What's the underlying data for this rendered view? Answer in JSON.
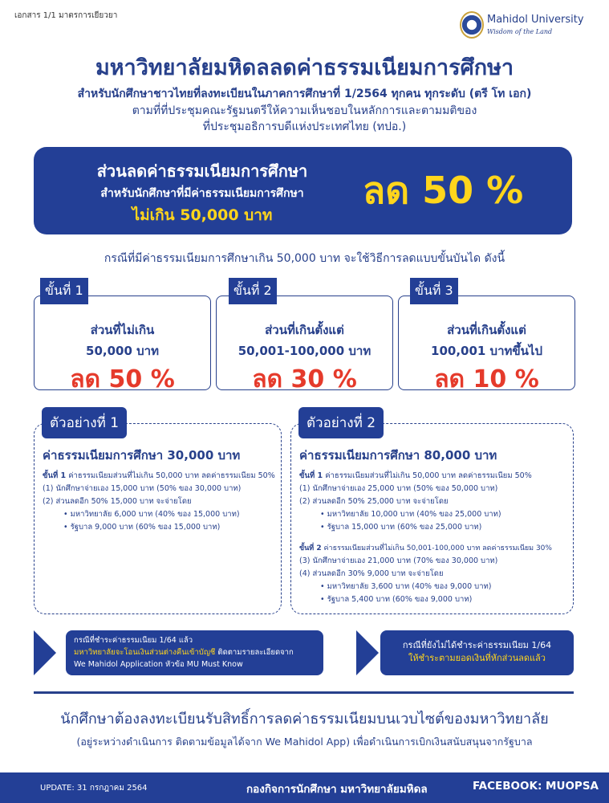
{
  "header": {
    "doc_note": "เอกสาร 1/1 มาตรการเยียวยา",
    "university_name": "Mahidol University",
    "slogan": "Wisdom of the Land",
    "title": "มหาวิทยาลัยมหิดลลดค่าธรรมเนียมการศึกษา",
    "subtitle_lines": [
      "สำหรับนักศึกษาชาวไทยที่ลงทะเบียนในภาคการศึกษาที่ 1/2564 ทุกคน ทุกระดับ (ตรี โท เอก)",
      "ตามที่ที่ประชุมคณะรัฐมนตรีให้ความเห็นชอบในหลักการและตามมติของ",
      "ที่ประชุมอธิการบดีแห่งประเทศไทย (ทปอ.)"
    ]
  },
  "hero": {
    "line1": "ส่วนลดค่าธรรมเนียมการศึกษา",
    "line2": "สำหรับนักศึกษาที่มีค่าธรรมเนียมการศึกษา",
    "line3": "ไม่เกิน 50,000 บาท",
    "discount": "ลด 50 %"
  },
  "step_note": "กรณีที่มีค่าธรรมเนียมการศึกษาเกิน 50,000 บาท จะใช้วิธีการลดแบบขั้นบันได ดังนี้",
  "tiers": [
    {
      "tag": "ขั้นที่ 1",
      "line1": "ส่วนที่ไม่เกิน",
      "line2": "50,000 บาท",
      "discount": "ลด 50 %"
    },
    {
      "tag": "ขั้นที่ 2",
      "line1": "ส่วนที่เกินตั้งแต่",
      "line2": "50,001-100,000 บาท",
      "discount": "ลด 30 %"
    },
    {
      "tag": "ขั้นที่ 3",
      "line1": "ส่วนที่เกินตั้งแต่",
      "line2": "100,001 บาทขึ้นไป",
      "discount": "ลด 10 %"
    }
  ],
  "examples": [
    {
      "tag": "ตัวอย่างที่ 1",
      "heading": "ค่าธรรมเนียมการศึกษา 30,000 บาท",
      "s1_label": "ขั้นที่ 1",
      "s1_text": "ค่าธรรมเนียมส่วนที่ไม่เกิน 50,000 บาท ลดค่าธรรมเนียม 50%",
      "s1_items": [
        "(1)  นักศึกษาจ่ายเอง 15,000 บาท (50% ของ 30,000 บาท)",
        "(2)  ส่วนลดอีก 50%  15,000 บาท จะจ่ายโดย"
      ],
      "s1_bullets": [
        "• มหาวิทยาลัย 6,000 บาท (40% ของ 15,000 บาท)",
        "• รัฐบาล 9,000 บาท (60% ของ 15,000 บาท)"
      ]
    },
    {
      "tag": "ตัวอย่างที่ 2",
      "heading": "ค่าธรรมเนียมการศึกษา 80,000 บาท",
      "s1_label": "ขั้นที่ 1",
      "s1_text": "ค่าธรรมเนียมส่วนที่ไม่เกิน 50,000 บาท ลดค่าธรรมเนียม 50%",
      "s1_items": [
        "(1)  นักศึกษาจ่ายเอง 25,000 บาท (50% ของ 50,000 บาท)",
        "(2)  ส่วนลดอีก 50%  25,000 บาท จะจ่ายโดย"
      ],
      "s1_bullets": [
        "• มหาวิทยาลัย 10,000 บาท (40% ของ 25,000 บาท)",
        "• รัฐบาล 15,000 บาท (60% ของ 25,000 บาท)"
      ],
      "s2_label": "ขั้นที่ 2",
      "s2_text": "ค่าธรรมเนียมส่วนที่ไม่เกิน 50,001-100,000 บาท ลดค่าธรรมเนียม 30%",
      "s2_items": [
        "(3)  นักศึกษาจ่ายเอง 21,000 บาท (70% ของ 30,000 บาท)",
        "(4)  ส่วนลดอีก 30%  9,000 บาท จะจ่ายโดย"
      ],
      "s2_bullets": [
        "• มหาวิทยาลัย 3,600 บาท (40% ของ 9,000 บาท)",
        "• รัฐบาล 5,400 บาท (60% ของ 9,000 บาท)"
      ]
    }
  ],
  "notes": {
    "paid_line1": "กรณีที่ชำระค่าธรรมเนียม 1/64 แล้ว",
    "paid_line2_highlight": "มหาวิทยาลัยจะโอนเงินส่วนต่างคืนเข้าบัญชี",
    "paid_line2_rest": " ติดตามรายละเอียดจาก",
    "paid_line3": "We Mahidol Application หัวข้อ MU Must Know",
    "unpaid_line1": "กรณีที่ยังไม่ได้ชำระค่าธรรมเนียม 1/64",
    "unpaid_line2": "ให้ชำระตามยอดเงินที่หักส่วนลดแล้ว"
  },
  "registration": {
    "line1": "นักศึกษาต้องลงทะเบียนรับสิทธิ์การลดค่าธรรมเนียมบนเวบไซต์ของมหาวิทยาลัย",
    "line2": "(อยู่ระหว่างดำเนินการ ติดตามข้อมูลได้จาก We Mahidol App) เพื่อดำเนินการเบิกเงินสนับสนุนจากรัฐบาล"
  },
  "footer": {
    "update": "UPDATE: 31 กรกฎาคม 2564",
    "office": "กองกิจการนักศึกษา มหาวิทยาลัยมหิดล",
    "facebook": "FACEBOOK: MUOPSA"
  },
  "colors": {
    "navy": "#233f96",
    "yellow": "#ffd51c",
    "red": "#e53a2b"
  }
}
